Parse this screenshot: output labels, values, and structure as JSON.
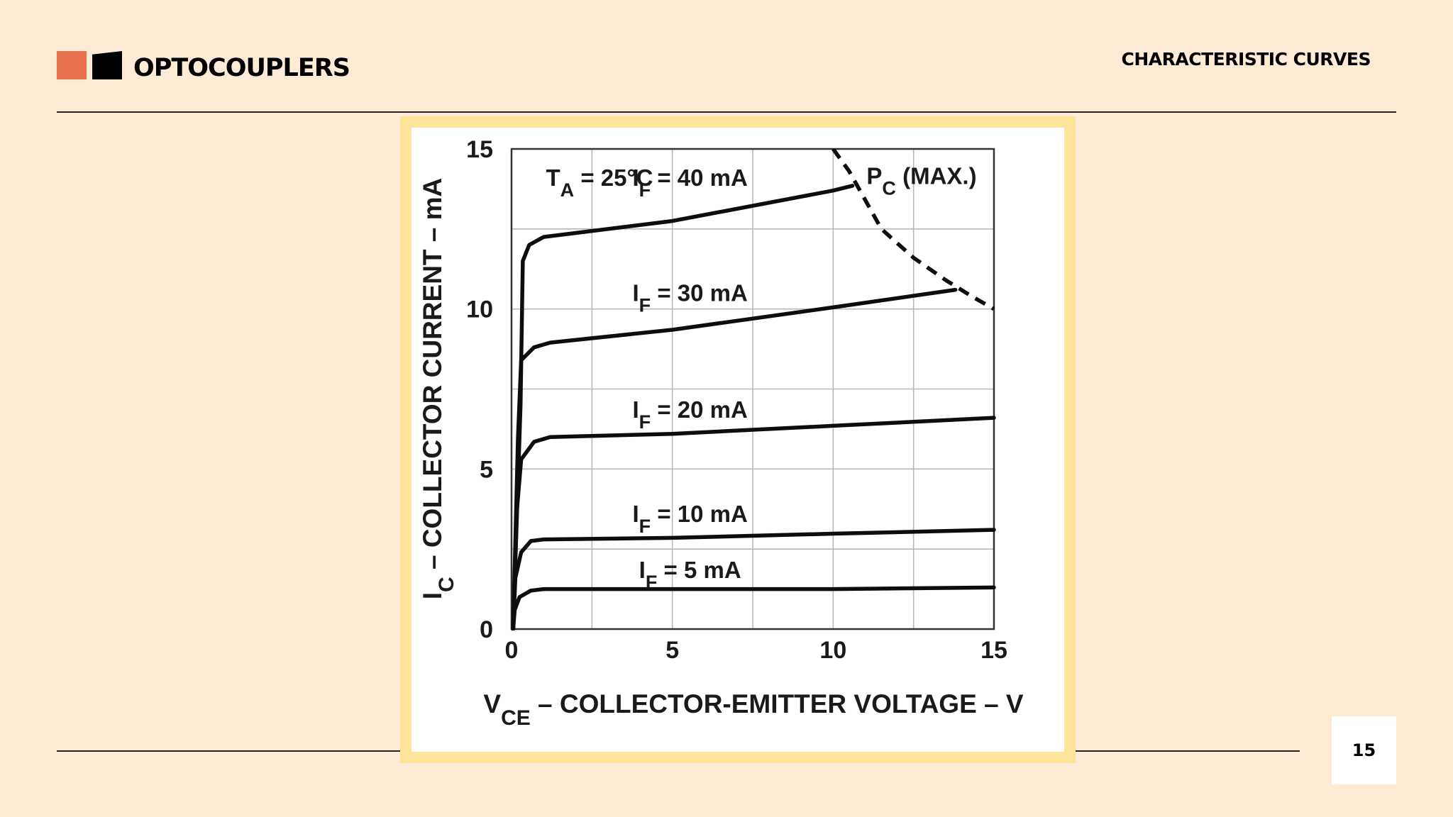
{
  "header": {
    "brand": "OPTOCOUPLERS",
    "section": "CHARACTERISTIC CURVES"
  },
  "footer": {
    "page_number": "15"
  },
  "colors": {
    "background": "#fdebd6",
    "accent_orange": "#e8724d",
    "frame_yellow": "#fde49a"
  },
  "chart_data": {
    "type": "line",
    "xlabel": "VCE – COLLECTOR-EMITTER VOLTAGE – V",
    "ylabel": "IC – COLLECTOR CURRENT – mA",
    "xlim": [
      0,
      15
    ],
    "ylim": [
      0,
      15
    ],
    "x_ticks": [
      0,
      5,
      10,
      15
    ],
    "y_ticks": [
      0,
      5,
      10,
      15
    ],
    "grid": true,
    "annotation": "TA = 25°C",
    "series": [
      {
        "name": "IF = 5 mA",
        "points": [
          [
            0.05,
            0
          ],
          [
            0.1,
            0.6
          ],
          [
            0.25,
            1.0
          ],
          [
            0.6,
            1.2
          ],
          [
            1,
            1.25
          ],
          [
            5,
            1.25
          ],
          [
            10,
            1.25
          ],
          [
            15,
            1.3
          ]
        ]
      },
      {
        "name": "IF = 10 mA",
        "points": [
          [
            0.05,
            0
          ],
          [
            0.12,
            1.6
          ],
          [
            0.3,
            2.4
          ],
          [
            0.6,
            2.75
          ],
          [
            1,
            2.8
          ],
          [
            5,
            2.85
          ],
          [
            10,
            2.98
          ],
          [
            15,
            3.1
          ]
        ]
      },
      {
        "name": "IF = 20 mA",
        "points": [
          [
            0.05,
            0
          ],
          [
            0.15,
            3.5
          ],
          [
            0.3,
            5.3
          ],
          [
            0.7,
            5.85
          ],
          [
            1.2,
            6.0
          ],
          [
            5,
            6.1
          ],
          [
            10,
            6.35
          ],
          [
            15,
            6.6
          ]
        ]
      },
      {
        "name": "IF = 30 mA",
        "points": [
          [
            0.05,
            0
          ],
          [
            0.2,
            6.0
          ],
          [
            0.3,
            8.4
          ],
          [
            0.7,
            8.8
          ],
          [
            1.2,
            8.95
          ],
          [
            5,
            9.35
          ],
          [
            10,
            10.05
          ],
          [
            13.8,
            10.6
          ]
        ]
      },
      {
        "name": "IF = 40 mA",
        "points": [
          [
            0.05,
            0
          ],
          [
            0.28,
            7.0
          ],
          [
            0.35,
            11.5
          ],
          [
            0.55,
            12.0
          ],
          [
            1,
            12.25
          ],
          [
            5,
            12.75
          ],
          [
            10,
            13.7
          ],
          [
            10.6,
            13.85
          ]
        ]
      }
    ],
    "limit_curve": {
      "name": "PC (MAX.)",
      "style": "dashed",
      "points": [
        [
          10.0,
          15
        ],
        [
          10.5,
          14.3
        ],
        [
          11.5,
          12.5
        ],
        [
          12.5,
          11.6
        ],
        [
          13.5,
          10.9
        ],
        [
          14.3,
          10.4
        ],
        [
          15,
          10.0
        ]
      ]
    }
  }
}
